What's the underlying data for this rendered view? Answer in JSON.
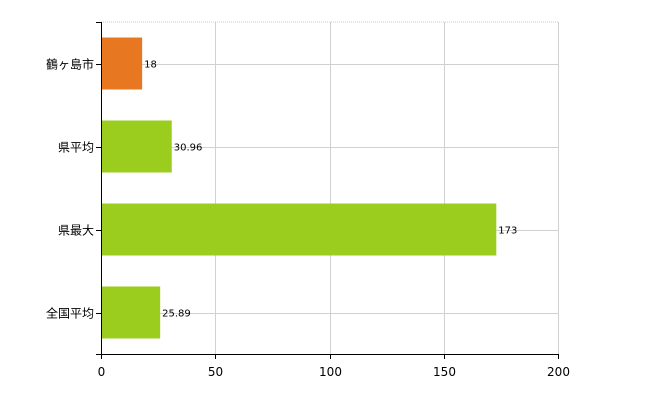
{
  "chart_data": {
    "type": "bar",
    "orientation": "horizontal",
    "categories": [
      "鶴ヶ島市",
      "県平均",
      "県最大",
      "全国平均"
    ],
    "values": [
      18,
      30.96,
      173,
      25.89
    ],
    "value_labels": [
      "18",
      "30.96",
      "173",
      "25.89"
    ],
    "bar_colors": [
      "#e87722",
      "#9acd1e",
      "#9acd1e",
      "#9acd1e"
    ],
    "xlim": [
      0,
      200
    ],
    "xticks": [
      0,
      50,
      100,
      150,
      200
    ],
    "xtick_labels": [
      "0",
      "50",
      "100",
      "150",
      "200"
    ],
    "grid": true,
    "legend": "none"
  }
}
